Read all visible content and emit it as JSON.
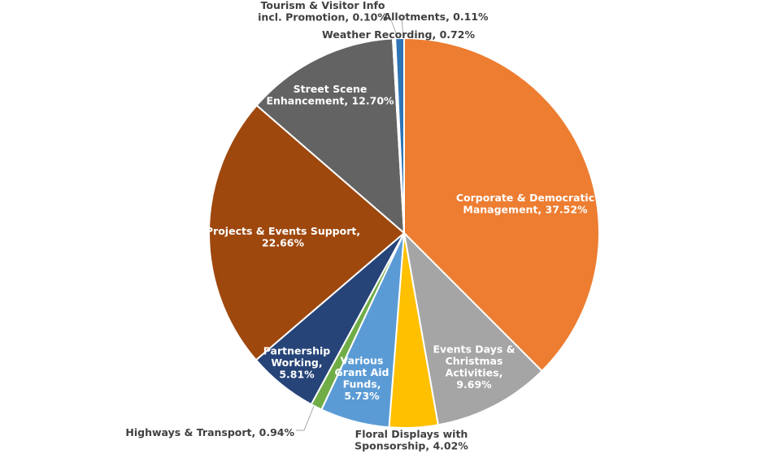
{
  "chart_data": {
    "type": "pie",
    "title": "",
    "slices": [
      {
        "name": "Corporate & Democratic Management",
        "percent": 37.52,
        "color": "#ED7D31",
        "label_lines": [
          "Corporate & Democratic",
          "Management, 37.52%"
        ],
        "label_style": "inside"
      },
      {
        "name": "Events Days & Christmas Activities",
        "percent": 9.69,
        "color": "#A5A5A5",
        "label_lines": [
          "Events Days &",
          "Christmas",
          "Activities,",
          "9.69%"
        ],
        "label_style": "inside"
      },
      {
        "name": "Floral Displays with Sponsorship",
        "percent": 4.02,
        "color": "#FFC000",
        "label_lines": [
          "Floral Displays with",
          "Sponsorship, 4.02%"
        ],
        "label_style": "outside"
      },
      {
        "name": "Various Grant Aid Funds",
        "percent": 5.73,
        "color": "#5B9BD5",
        "label_lines": [
          "Various",
          "Grant Aid",
          "Funds,",
          "5.73%"
        ],
        "label_style": "inside"
      },
      {
        "name": "Highways & Transport",
        "percent": 0.94,
        "color": "#70AD47",
        "label_lines": [
          "Highways & Transport, 0.94%"
        ],
        "label_style": "outside"
      },
      {
        "name": "Partnership Working",
        "percent": 5.81,
        "color": "#264478",
        "label_lines": [
          "Partnership",
          "Working,",
          "5.81%"
        ],
        "label_style": "inside"
      },
      {
        "name": "Projects & Events Support",
        "percent": 22.66,
        "color": "#9E480E",
        "label_lines": [
          "Projects & Events Support,",
          "22.66%"
        ],
        "label_style": "inside"
      },
      {
        "name": "Street Scene Enhancement",
        "percent": 12.7,
        "color": "#636363",
        "label_lines": [
          "Street Scene",
          "Enhancement, 12.70%"
        ],
        "label_style": "inside"
      },
      {
        "name": "Tourism & Visitor Info incl. Promotion",
        "percent": 0.1,
        "color": "#997300",
        "label_lines": [
          "Tourism & Visitor Info",
          "incl. Promotion, 0.10%"
        ],
        "label_style": "outside"
      },
      {
        "name": "Allotments",
        "percent": 0.11,
        "color": "#255E91",
        "label_lines": [
          "Allotments, 0.11%"
        ],
        "label_style": "outside"
      },
      {
        "name": "Weather Recording",
        "percent": 0.72,
        "color": "#2E75B6",
        "label_lines": [
          "Weather Recording, 0.72%"
        ],
        "label_style": "outside"
      }
    ]
  }
}
